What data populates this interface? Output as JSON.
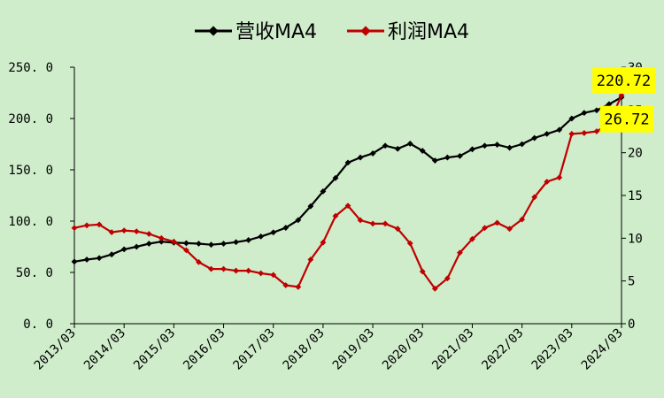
{
  "chart_data": {
    "type": "line",
    "x": [
      "2013/03",
      "2013/06",
      "2013/09",
      "2013/12",
      "2014/03",
      "2014/06",
      "2014/09",
      "2014/12",
      "2015/03",
      "2015/06",
      "2015/09",
      "2015/12",
      "2016/03",
      "2016/06",
      "2016/09",
      "2016/12",
      "2017/03",
      "2017/06",
      "2017/09",
      "2017/12",
      "2018/03",
      "2018/06",
      "2018/09",
      "2018/12",
      "2019/03",
      "2019/06",
      "2019/09",
      "2019/12",
      "2020/03",
      "2020/06",
      "2020/09",
      "2020/12",
      "2021/03",
      "2021/06",
      "2021/09",
      "2021/12",
      "2022/03",
      "2022/06",
      "2022/09",
      "2022/12",
      "2023/03",
      "2023/06",
      "2023/09",
      "2023/12",
      "2024/03"
    ],
    "x_tick_labels": [
      "2013/03",
      "2014/03",
      "2015/03",
      "2016/03",
      "2017/03",
      "2018/03",
      "2019/03",
      "2020/03",
      "2021/03",
      "2022/03",
      "2023/03",
      "2024/03"
    ],
    "series": [
      {
        "name": "营收MA4",
        "axis": "left",
        "color": "#000000",
        "values": [
          60.5,
          62.5,
          64,
          67.5,
          72.5,
          75,
          78,
          80,
          79,
          78.5,
          78,
          77,
          78,
          79.5,
          81.5,
          85,
          89,
          93.5,
          101,
          114.5,
          129,
          142,
          157,
          162,
          166,
          173.5,
          170.5,
          175.5,
          168.5,
          159,
          162,
          163.5,
          170,
          173.5,
          174.5,
          171.5,
          175,
          181,
          185,
          189,
          200,
          205.5,
          208,
          214,
          220.72
        ]
      },
      {
        "name": "利润MA4",
        "axis": "right",
        "color": "#c00000",
        "values": [
          11.2,
          11.5,
          11.6,
          10.7,
          10.9,
          10.8,
          10.5,
          10,
          9.6,
          8.6,
          7.2,
          6.4,
          6.4,
          6.2,
          6.2,
          5.9,
          5.7,
          4.5,
          4.3,
          7.5,
          9.5,
          12.6,
          13.8,
          12.1,
          11.7,
          11.7,
          11.1,
          9.4,
          6.1,
          4.1,
          5.3,
          8.3,
          9.9,
          11.2,
          11.8,
          11.1,
          12.2,
          14.8,
          16.6,
          17.1,
          22.2,
          22.3,
          22.5,
          23.4,
          26.72
        ]
      }
    ],
    "y_left": {
      "lim": [
        0,
        250
      ],
      "ticks": [
        0,
        50,
        100,
        150,
        200,
        250
      ],
      "tick_labels": [
        "0. 0",
        "50. 0",
        "100. 0",
        "150. 0",
        "200. 0",
        "250. 0"
      ]
    },
    "y_right": {
      "lim": [
        0,
        30
      ],
      "ticks": [
        0,
        5,
        10,
        15,
        20,
        25,
        30
      ],
      "tick_labels": [
        "0",
        "5",
        "10",
        "15",
        "20",
        "25",
        "30"
      ]
    },
    "callouts": [
      {
        "series": "营收MA4",
        "text": "220.72"
      },
      {
        "series": "利润MA4",
        "text": "26.72"
      }
    ],
    "callout_color": "#ffff00",
    "background": "#cfeccb",
    "grid": false,
    "legend_position": "top-center"
  }
}
